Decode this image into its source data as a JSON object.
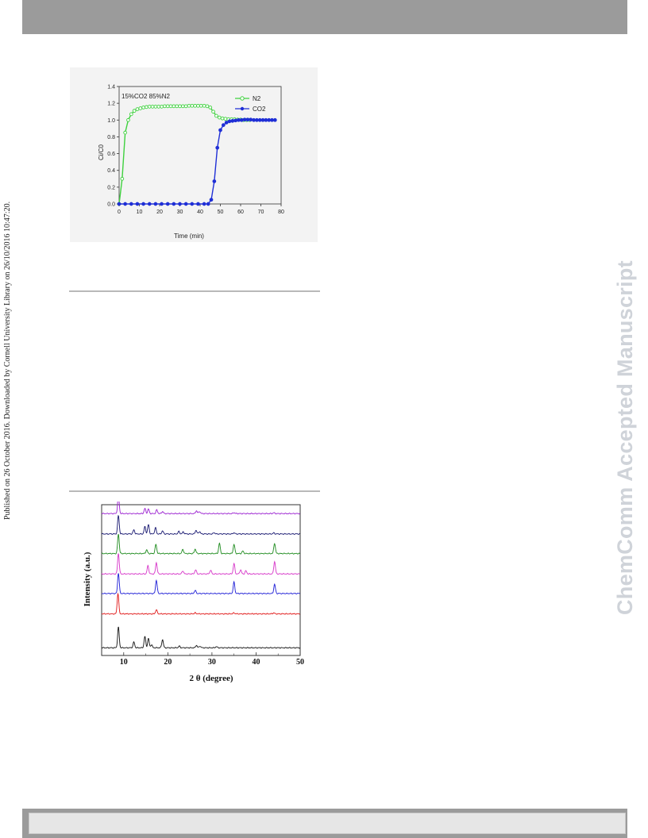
{
  "side_note": "Published on 26 October 2016. Downloaded by Cornell University Library on 26/10/2016 10:47:20.",
  "watermark": "ChemComm Accepted Manuscript",
  "chart_data": [
    {
      "type": "line",
      "annotation": "15%CO2 85%N2",
      "xlabel": "Time (min)",
      "ylabel": "Ci/C0",
      "xlim": [
        0,
        80
      ],
      "ylim": [
        0,
        1.4
      ],
      "x_ticks": [
        "0",
        "10",
        "20",
        "30",
        "40",
        "50",
        "60",
        "70",
        "80"
      ],
      "y_ticks": [
        "0.0",
        "0.2",
        "0.4",
        "0.6",
        "0.8",
        "1.0",
        "1.2",
        "1.4"
      ],
      "legend_position": "top-right",
      "series": [
        {
          "name": "N2",
          "color": "#3fd13f",
          "marker": "open-circle",
          "x": [
            0,
            1.5,
            3,
            4.5,
            6,
            7.5,
            9,
            10.5,
            12,
            13.5,
            15,
            16.5,
            18,
            19.5,
            21,
            22.5,
            24,
            25.5,
            27,
            28.5,
            30,
            31.5,
            33,
            34.5,
            36,
            37.5,
            39,
            40.5,
            42,
            43.5,
            45,
            46.5,
            48,
            49.5,
            51,
            52.5,
            54,
            55.5,
            57,
            58.5,
            60,
            61.5,
            63,
            64.5
          ],
          "y": [
            0,
            0.3,
            0.85,
            1.0,
            1.07,
            1.11,
            1.13,
            1.14,
            1.15,
            1.155,
            1.16,
            1.16,
            1.16,
            1.16,
            1.16,
            1.165,
            1.165,
            1.165,
            1.165,
            1.165,
            1.165,
            1.165,
            1.165,
            1.17,
            1.17,
            1.17,
            1.17,
            1.17,
            1.17,
            1.165,
            1.15,
            1.1,
            1.05,
            1.03,
            1.02,
            1.015,
            1.01,
            1.01,
            1.01,
            1.005,
            1.005,
            1.0,
            1.0,
            1.0
          ]
        },
        {
          "name": "CO2",
          "color": "#1f2fd6",
          "marker": "filled-circle",
          "x": [
            0,
            3,
            6,
            9,
            12,
            15,
            18,
            21,
            24,
            27,
            30,
            33,
            36,
            39,
            42,
            44,
            45.5,
            47,
            48.5,
            50,
            51.5,
            53,
            54.5,
            56,
            57.5,
            59,
            60.5,
            62,
            63.5,
            65,
            66.5,
            68,
            69.5,
            71,
            72.5,
            74,
            75.5,
            77
          ],
          "y": [
            0,
            0,
            0,
            0,
            0,
            0,
            0,
            0,
            0,
            0,
            0,
            0,
            0,
            0,
            0,
            0,
            0.05,
            0.27,
            0.67,
            0.88,
            0.94,
            0.97,
            0.985,
            0.99,
            0.995,
            1.0,
            1.0,
            1.005,
            1.005,
            1.005,
            1.0,
            1.0,
            1.0,
            1.0,
            1.0,
            1.0,
            1.0,
            1.0
          ]
        }
      ]
    },
    {
      "type": "line",
      "xlabel": "2 θ (degree)",
      "ylabel": "Intensity (a.u.)",
      "xlim": [
        5,
        50
      ],
      "x_ticks": [
        "10",
        "20",
        "30",
        "40",
        "50"
      ],
      "series": [
        {
          "color": "#9a1fd0",
          "baseline": 0.92,
          "peaks": [
            [
              8.8,
              0.9
            ],
            [
              14.8,
              0.25
            ],
            [
              15.6,
              0.22
            ],
            [
              17.5,
              0.18
            ],
            [
              18.8,
              0.1
            ],
            [
              26.5,
              0.14
            ],
            [
              27.2,
              0.1
            ],
            [
              35,
              0.05
            ],
            [
              44,
              0.04
            ]
          ]
        },
        {
          "color": "#14146e",
          "baseline": 0.785,
          "peaks": [
            [
              8.8,
              0.9
            ],
            [
              12.3,
              0.2
            ],
            [
              14.8,
              0.35
            ],
            [
              15.6,
              0.45
            ],
            [
              17.2,
              0.3
            ],
            [
              18.8,
              0.15
            ],
            [
              22.5,
              0.12
            ],
            [
              23.5,
              0.1
            ],
            [
              26.4,
              0.18
            ],
            [
              27.2,
              0.12
            ],
            [
              30.5,
              0.06
            ],
            [
              35,
              0.06
            ],
            [
              44,
              0.05
            ]
          ]
        },
        {
          "color": "#1c8a1c",
          "baseline": 0.655,
          "peaks": [
            [
              8.8,
              0.95
            ],
            [
              15.2,
              0.18
            ],
            [
              17.3,
              0.45
            ],
            [
              23.4,
              0.2
            ],
            [
              26.2,
              0.22
            ],
            [
              31.7,
              0.5
            ],
            [
              35,
              0.45
            ],
            [
              37,
              0.12
            ],
            [
              44.2,
              0.5
            ]
          ]
        },
        {
          "color": "#d633c8",
          "baseline": 0.52,
          "peaks": [
            [
              8.8,
              1.0
            ],
            [
              15.5,
              0.4
            ],
            [
              17.4,
              0.55
            ],
            [
              23.4,
              0.15
            ],
            [
              26.3,
              0.2
            ],
            [
              29.7,
              0.18
            ],
            [
              35,
              0.5
            ],
            [
              36.5,
              0.2
            ],
            [
              37.7,
              0.15
            ],
            [
              44.2,
              0.6
            ]
          ]
        },
        {
          "color": "#1c1cd6",
          "baseline": 0.39,
          "peaks": [
            [
              8.8,
              1.0
            ],
            [
              17.4,
              0.65
            ],
            [
              26.2,
              0.15
            ],
            [
              35,
              0.55
            ],
            [
              44.2,
              0.45
            ]
          ]
        },
        {
          "color": "#e01414",
          "baseline": 0.255,
          "peaks": [
            [
              8.7,
              1.0
            ],
            [
              17.4,
              0.2
            ],
            [
              26.2,
              0.05
            ],
            [
              35,
              0.05
            ],
            [
              44,
              0.05
            ]
          ]
        },
        {
          "color": "#111111",
          "baseline": 0.03,
          "peaks": [
            [
              8.8,
              1.0
            ],
            [
              12.3,
              0.28
            ],
            [
              14.8,
              0.55
            ],
            [
              15.6,
              0.45
            ],
            [
              16.3,
              0.15
            ],
            [
              18.8,
              0.4
            ],
            [
              22.6,
              0.08
            ],
            [
              26.5,
              0.12
            ],
            [
              27.3,
              0.08
            ],
            [
              31,
              0.06
            ]
          ]
        }
      ]
    }
  ]
}
